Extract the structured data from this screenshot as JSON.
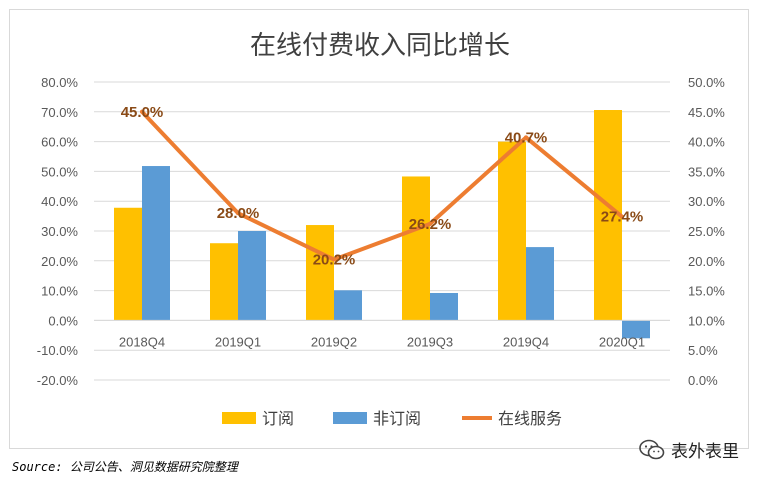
{
  "chart_data": {
    "type": "bar",
    "title": "在线付费收入同比增长",
    "categories": [
      "2018Q4",
      "2019Q1",
      "2019Q2",
      "2019Q3",
      "2019Q4",
      "2020Q1"
    ],
    "series": [
      {
        "name": "订阅",
        "kind": "bar",
        "axis": "left",
        "color": "#FFC000",
        "values": [
          37.8,
          25.9,
          32.0,
          48.3,
          60.0,
          70.6
        ]
      },
      {
        "name": "非订阅",
        "kind": "bar",
        "axis": "left",
        "color": "#5B9BD5",
        "values": [
          51.8,
          30.0,
          10.1,
          9.2,
          24.6,
          -6.0
        ]
      },
      {
        "name": "在线服务",
        "kind": "line",
        "axis": "right",
        "color": "#ED7D31",
        "values": [
          45.0,
          28.0,
          20.2,
          26.2,
          40.7,
          27.4
        ]
      }
    ],
    "data_labels": [
      "45.0%",
      "28.0%",
      "20.2%",
      "26.2%",
      "40.7%",
      "27.4%"
    ],
    "ylim_left": [
      -20,
      80
    ],
    "ylim_right": [
      0,
      50
    ],
    "yticks_left": [
      "80.0%",
      "70.0%",
      "60.0%",
      "50.0%",
      "40.0%",
      "30.0%",
      "20.0%",
      "10.0%",
      "0.0%",
      "-10.0%",
      "-20.0%"
    ],
    "yticks_right": [
      "50.0%",
      "45.0%",
      "40.0%",
      "35.0%",
      "30.0%",
      "25.0%",
      "20.0%",
      "15.0%",
      "10.0%",
      "5.0%",
      "0.0%"
    ],
    "grid": true,
    "legend_position": "bottom"
  },
  "source_note": "Source: 公司公告、洞见数据研究院整理",
  "watermark": "表外表里"
}
